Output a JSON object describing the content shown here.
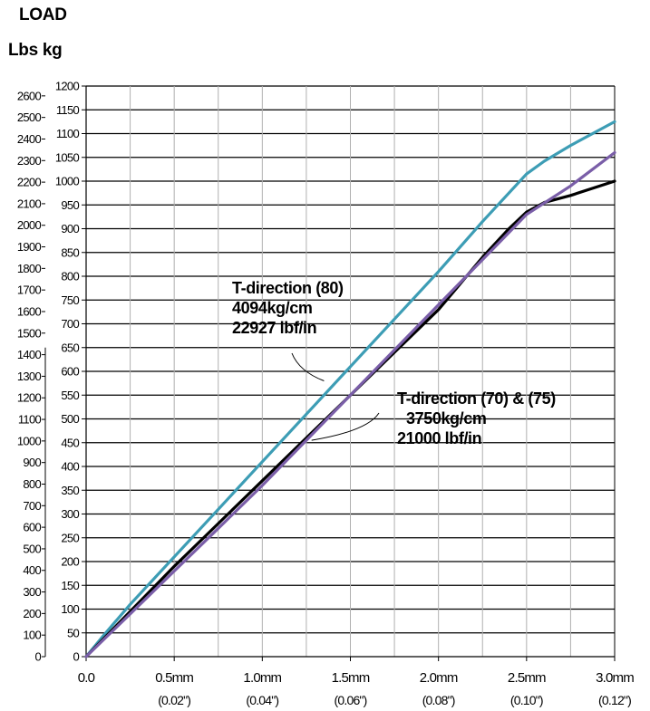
{
  "chart_data": {
    "type": "line",
    "header": {
      "line1": "LOAD",
      "line2": "Lbs  kg"
    },
    "xlim": [
      0,
      3.0
    ],
    "x_ticks": [
      {
        "value": 0.0,
        "label": "0.0",
        "sub": ""
      },
      {
        "value": 0.5,
        "label": "0.5mm",
        "sub": "(0.02\")"
      },
      {
        "value": 1.0,
        "label": "1.0mm",
        "sub": "(0.04\")"
      },
      {
        "value": 1.5,
        "label": "1.5mm",
        "sub": "(0.06\")"
      },
      {
        "value": 2.0,
        "label": "2.0mm",
        "sub": "(0.08\")"
      },
      {
        "value": 2.5,
        "label": "2.5mm",
        "sub": "(0.10\")"
      },
      {
        "value": 3.0,
        "label": "3.0mm",
        "sub": "(0.12\")"
      }
    ],
    "y_kg_lim": [
      0,
      1200
    ],
    "y_kg_ticks": [
      "0",
      "50",
      "100",
      "150",
      "200",
      "250",
      "300",
      "350",
      "400",
      "450",
      "500",
      "550",
      "600",
      "650",
      "700",
      "750",
      "800",
      "850",
      "900",
      "950",
      "1000",
      "1050",
      "1100",
      "1150",
      "1200"
    ],
    "y_lbs_ticks": [
      "0",
      "100",
      "200",
      "300",
      "400",
      "500",
      "600",
      "700",
      "800",
      "900",
      "1000",
      "1100",
      "1200",
      "1300",
      "1400",
      "1500",
      "1600",
      "1700",
      "1800",
      "1900",
      "2000",
      "2100",
      "2200",
      "2300",
      "2400",
      "2500",
      "2600"
    ],
    "grid": true,
    "series": [
      {
        "color": "#3d9db5",
        "x": [
          0,
          0.1,
          0.25,
          0.5,
          0.75,
          1.0,
          1.25,
          1.5,
          1.75,
          2.0,
          2.25,
          2.4,
          2.5,
          2.6,
          2.75,
          3.0
        ],
        "y": [
          0,
          45,
          110,
          210,
          310,
          410,
          510,
          610,
          710,
          810,
          915,
          975,
          1015,
          1042,
          1075,
          1125
        ]
      },
      {
        "color": "#000000",
        "x": [
          0,
          0.25,
          0.5,
          0.75,
          1.0,
          1.25,
          1.5,
          1.75,
          2.0,
          2.25,
          2.4,
          2.5,
          2.6,
          2.75,
          3.0
        ],
        "y": [
          0,
          95,
          190,
          280,
          370,
          460,
          550,
          640,
          730,
          840,
          900,
          935,
          955,
          970,
          1000
        ]
      },
      {
        "color": "#7a5ea8",
        "x": [
          0,
          0.25,
          0.5,
          0.75,
          1.0,
          1.25,
          1.5,
          1.75,
          2.0,
          2.25,
          2.5,
          2.75,
          3.0
        ],
        "y": [
          0,
          90,
          180,
          270,
          360,
          455,
          550,
          645,
          740,
          835,
          930,
          990,
          1060
        ]
      }
    ],
    "annotations": [
      {
        "lines": [
          "T-direction (80)",
          "4094kg/cm",
          "22927 lbf/in"
        ],
        "pointer_to": {
          "x": 1.35,
          "y": 580
        }
      },
      {
        "lines": [
          "T-direction (70) & (75)",
          "3750kg/cm",
          "21000 lbf/in"
        ],
        "pointer_to": {
          "x": 1.28,
          "y": 455
        }
      }
    ]
  }
}
